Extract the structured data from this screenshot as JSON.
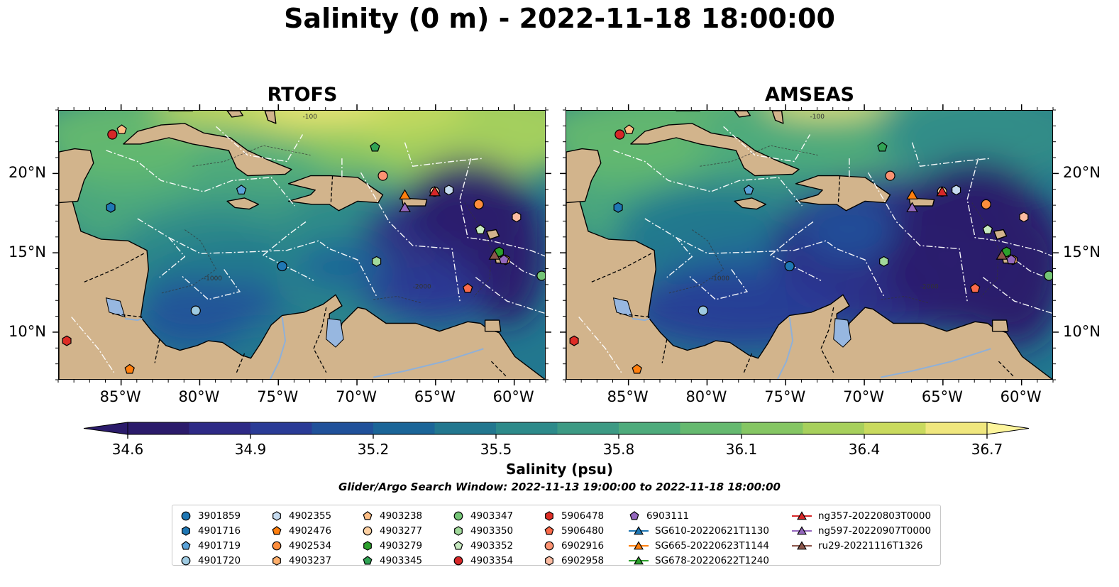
{
  "title": "Salinity (0 m) - 2022-11-18 18:00:00",
  "panels": [
    {
      "title": "RTOFS",
      "land_color": "#d2b48c",
      "southwest_fill": "#2a1d6e"
    },
    {
      "title": "AMSEAS",
      "land_color": "#d2b48c",
      "southwest_fill": "#97b7e0"
    }
  ],
  "map": {
    "lon_range": [
      -89,
      -58
    ],
    "lat_range": [
      7,
      24
    ],
    "lon_ticks": [
      -85,
      -80,
      -75,
      -70,
      -65,
      -60
    ],
    "lon_tick_labels": [
      "85°W",
      "80°W",
      "75°W",
      "70°W",
      "65°W",
      "60°W"
    ],
    "lat_ticks": [
      10,
      15,
      20
    ],
    "lat_tick_labels": [
      "10°N",
      "15°N",
      "20°N"
    ],
    "contour_labels": [
      "-100",
      "-1000",
      "-2000"
    ]
  },
  "colorbar": {
    "min": 34.6,
    "max": 36.7,
    "ticks": [
      "34.6",
      "34.9",
      "35.2",
      "35.5",
      "35.8",
      "36.1",
      "36.4",
      "36.7"
    ],
    "label": "Salinity (psu)",
    "colors": [
      "#2b1b6b",
      "#2e2a86",
      "#2a3b96",
      "#20519a",
      "#1b6598",
      "#22778f",
      "#2d8a8a",
      "#3d9a84",
      "#4eab7c",
      "#65b96f",
      "#85c663",
      "#a7d05c",
      "#c9da5e",
      "#f0e77e"
    ]
  },
  "search_window": "Glider/Argo Search Window: 2022-11-13 19:00:00 to 2022-11-18 18:00:00",
  "legend": [
    [
      {
        "label": "3901859",
        "marker": "circle",
        "color": "#1f77b4"
      },
      {
        "label": "4901716",
        "marker": "hexagon",
        "color": "#1f77b4"
      },
      {
        "label": "4901719",
        "marker": "pentagon",
        "color": "#5aa2d8"
      },
      {
        "label": "4901720",
        "marker": "circle",
        "color": "#9ecae1"
      }
    ],
    [
      {
        "label": "4902355",
        "marker": "hexagon",
        "color": "#c6dbef"
      },
      {
        "label": "4902476",
        "marker": "pentagon",
        "color": "#ff7f0e"
      },
      {
        "label": "4902534",
        "marker": "circle",
        "color": "#fd8d3c"
      },
      {
        "label": "4903237",
        "marker": "hexagon",
        "color": "#fdae6b"
      }
    ],
    [
      {
        "label": "4903238",
        "marker": "pentagon",
        "color": "#fdbe85"
      },
      {
        "label": "4903277",
        "marker": "circle",
        "color": "#fdd0a2"
      },
      {
        "label": "4903279",
        "marker": "hexagon",
        "color": "#2ca02c"
      },
      {
        "label": "4903345",
        "marker": "pentagon",
        "color": "#31a354"
      }
    ],
    [
      {
        "label": "4903347",
        "marker": "circle",
        "color": "#74c476"
      },
      {
        "label": "4903350",
        "marker": "hexagon",
        "color": "#a1d99b"
      },
      {
        "label": "4903352",
        "marker": "pentagon",
        "color": "#c7e9c0"
      },
      {
        "label": "4903354",
        "marker": "circle",
        "color": "#d62728"
      }
    ],
    [
      {
        "label": "5906478",
        "marker": "hexagon",
        "color": "#de2d26"
      },
      {
        "label": "5906480",
        "marker": "pentagon",
        "color": "#fb6a4a"
      },
      {
        "label": "6902916",
        "marker": "circle",
        "color": "#fc9272"
      },
      {
        "label": "6902958",
        "marker": "hexagon",
        "color": "#fcbba1"
      }
    ],
    [
      {
        "label": "6903111",
        "marker": "pentagon",
        "color": "#9467bd"
      },
      {
        "label": "SG610-20220621T1130",
        "marker": "triangle-line",
        "color": "#1f77b4"
      },
      {
        "label": "SG665-20220623T1144",
        "marker": "triangle-line",
        "color": "#ff7f0e"
      },
      {
        "label": "SG678-20220622T1240",
        "marker": "triangle-line",
        "color": "#2ca02c"
      }
    ],
    [
      {
        "label": "ng357-20220803T0000",
        "marker": "triangle-line",
        "color": "#d62728"
      },
      {
        "label": "ng597-20220907T0000",
        "marker": "triangle-line",
        "color": "#9467bd"
      },
      {
        "label": "ru29-20221116T1326",
        "marker": "triangle-line",
        "color": "#8c564b"
      }
    ]
  ],
  "floats": [
    {
      "id": "3901859",
      "lon": -74.8,
      "lat": 14.2,
      "marker": "circle",
      "color": "#1f77b4"
    },
    {
      "id": "4901716",
      "lon": -85.7,
      "lat": 17.9,
      "marker": "hexagon",
      "color": "#1f77b4"
    },
    {
      "id": "4901719",
      "lon": -77.4,
      "lat": 19.0,
      "marker": "pentagon",
      "color": "#5aa2d8"
    },
    {
      "id": "4901720",
      "lon": -80.3,
      "lat": 11.4,
      "marker": "circle",
      "color": "#9ecae1"
    },
    {
      "id": "4902355",
      "lon": -64.2,
      "lat": 19.0,
      "marker": "hexagon",
      "color": "#c6dbef"
    },
    {
      "id": "4902476",
      "lon": -84.5,
      "lat": 7.7,
      "marker": "pentagon",
      "color": "#ff7f0e"
    },
    {
      "id": "4902534",
      "lon": -62.3,
      "lat": 18.1,
      "marker": "circle",
      "color": "#fd8d3c"
    },
    {
      "id": "4903237",
      "lon": -60.6,
      "lat": 14.6,
      "marker": "hexagon",
      "color": "#fdae6b"
    },
    {
      "id": "4903238",
      "lon": -85.0,
      "lat": 22.8,
      "marker": "pentagon",
      "color": "#fdbe85"
    },
    {
      "id": "4903277",
      "lon": -65.1,
      "lat": 18.9,
      "marker": "circle",
      "color": "#fdd0a2"
    },
    {
      "id": "4903279",
      "lon": -61.0,
      "lat": 15.1,
      "marker": "hexagon",
      "color": "#2ca02c"
    },
    {
      "id": "4903345",
      "lon": -68.9,
      "lat": 21.7,
      "marker": "pentagon",
      "color": "#31a354"
    },
    {
      "id": "4903347",
      "lon": -58.3,
      "lat": 13.6,
      "marker": "circle",
      "color": "#74c476"
    },
    {
      "id": "4903350",
      "lon": -68.8,
      "lat": 14.5,
      "marker": "hexagon",
      "color": "#a1d99b"
    },
    {
      "id": "4903352",
      "lon": -62.2,
      "lat": 16.5,
      "marker": "pentagon",
      "color": "#c7e9c0"
    },
    {
      "id": "4903354",
      "lon": -85.6,
      "lat": 22.5,
      "marker": "circle",
      "color": "#d62728"
    },
    {
      "id": "5906478",
      "lon": -88.5,
      "lat": 9.5,
      "marker": "hexagon",
      "color": "#de2d26"
    },
    {
      "id": "5906480",
      "lon": -63.0,
      "lat": 12.8,
      "marker": "pentagon",
      "color": "#fb6a4a"
    },
    {
      "id": "6902916",
      "lon": -68.4,
      "lat": 19.9,
      "marker": "circle",
      "color": "#fc9272"
    },
    {
      "id": "6902958",
      "lon": -59.9,
      "lat": 17.3,
      "marker": "hexagon",
      "color": "#fcbba1"
    },
    {
      "id": "6903111",
      "lon": -60.7,
      "lat": 14.6,
      "marker": "pentagon",
      "color": "#9467bd"
    }
  ],
  "gliders": [
    {
      "id": "SG665-20220623T1144",
      "lon": -67.0,
      "lat": 18.7,
      "color": "#ff7f0e"
    },
    {
      "id": "ng357-20220803T0000",
      "lon": -65.1,
      "lat": 18.9,
      "color": "#d62728"
    },
    {
      "id": "ng597-20220907T0000",
      "lon": -67.0,
      "lat": 17.9,
      "color": "#9467bd"
    },
    {
      "id": "ru29-20221116T1326",
      "lon": -61.3,
      "lat": 14.9,
      "color": "#8c564b"
    }
  ]
}
